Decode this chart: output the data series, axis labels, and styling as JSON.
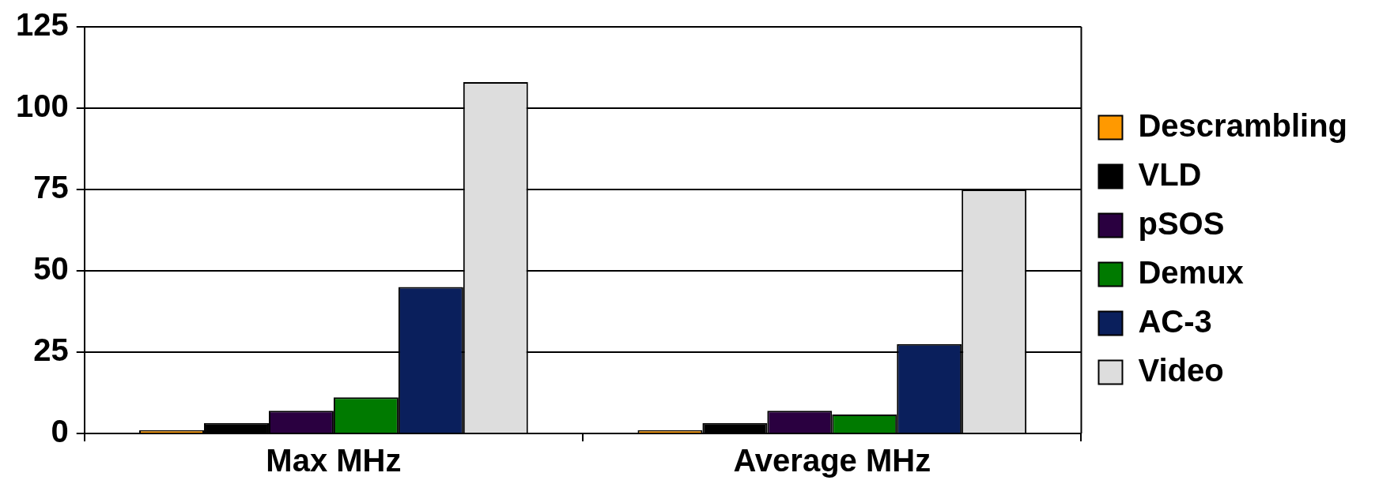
{
  "chart_data": {
    "type": "bar",
    "categories": [
      "Max MHz",
      "Average MHz"
    ],
    "series": [
      {
        "name": "Descrambling",
        "color": "#ff9900",
        "values": [
          1,
          1
        ]
      },
      {
        "name": "VLD",
        "color": "#000000",
        "values": [
          3.2,
          3.2
        ]
      },
      {
        "name": "pSOS",
        "color": "#2a0040",
        "values": [
          7,
          7
        ]
      },
      {
        "name": "Demux",
        "color": "#007a00",
        "values": [
          11.1,
          5.8
        ]
      },
      {
        "name": "AC-3",
        "color": "#0a1f5c",
        "values": [
          45,
          27.5
        ]
      },
      {
        "name": "Video",
        "color": "#dddddd",
        "values": [
          108,
          75
        ]
      }
    ],
    "ylim": [
      0,
      125
    ],
    "yticks": [
      0,
      25,
      50,
      75,
      100,
      125
    ],
    "grid": "y",
    "legend": "right"
  }
}
